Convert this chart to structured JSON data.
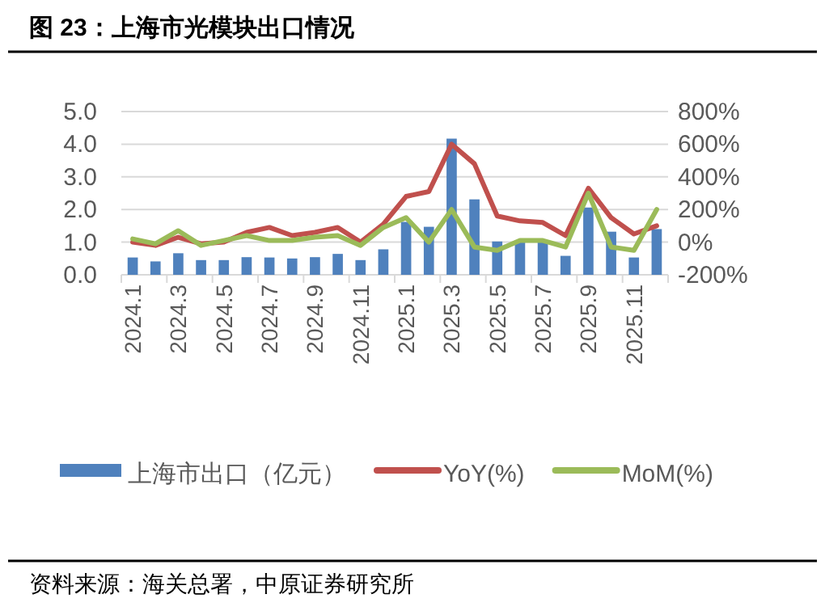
{
  "chart_data": {
    "type": "bar",
    "title": "图 23：上海市光模块出口情况",
    "categories": [
      "2024.1",
      null,
      "2024.3",
      null,
      "2024.5",
      null,
      "2024.7",
      null,
      "2024.9",
      null,
      "2024.11",
      null,
      "2025.1",
      null,
      "2025.3",
      null,
      "2025.5",
      null,
      "2025.7",
      null,
      "2025.9",
      null,
      "2025.11",
      null
    ],
    "series": [
      {
        "name": "上海市出口（亿元）",
        "color": "#4f81bd",
        "values": [
          0.53,
          0.41,
          0.66,
          0.45,
          0.45,
          0.54,
          0.53,
          0.5,
          0.54,
          0.64,
          0.45,
          0.78,
          1.62,
          1.47,
          4.17,
          2.31,
          1.02,
          0.99,
          1.02,
          0.58,
          2.06,
          1.32,
          0.53,
          1.4
        ]
      },
      {
        "name": "YoY(%)",
        "type": "line",
        "axis": "y2",
        "color": "#c0504d",
        "values": [
          0,
          -20,
          30,
          -10,
          0,
          60,
          90,
          40,
          60,
          90,
          0,
          110,
          280,
          310,
          600,
          480,
          160,
          130,
          120,
          40,
          330,
          150,
          50,
          100
        ]
      },
      {
        "name": "MoM(%)",
        "type": "line",
        "axis": "y2",
        "color": "#9bbb59",
        "values": [
          20,
          -10,
          70,
          -20,
          10,
          40,
          10,
          10,
          30,
          40,
          -20,
          90,
          150,
          0,
          200,
          -30,
          -50,
          10,
          10,
          -30,
          300,
          -30,
          -50,
          200
        ]
      }
    ],
    "ylim": [
      0,
      5
    ],
    "yticks": [
      {
        "value": 0,
        "label": "0.0"
      },
      {
        "value": 1,
        "label": "1.0"
      },
      {
        "value": 2,
        "label": "2.0"
      },
      {
        "value": 3,
        "label": "3.0"
      },
      {
        "value": 4,
        "label": "4.0"
      },
      {
        "value": 5,
        "label": "5.0"
      }
    ],
    "y2lim": [
      -200,
      800
    ],
    "y2ticks": [
      {
        "value": -200,
        "label": "-200%"
      },
      {
        "value": 0,
        "label": "0%"
      },
      {
        "value": 200,
        "label": "200%"
      },
      {
        "value": 400,
        "label": "400%"
      },
      {
        "value": 600,
        "label": "600%"
      },
      {
        "value": 800,
        "label": "800%"
      }
    ],
    "grid": "y",
    "legend": "bottom",
    "marker": "none",
    "line_style": "solid",
    "annotations": [
      "资料来源：海关总署，中原证券研究所"
    ]
  }
}
